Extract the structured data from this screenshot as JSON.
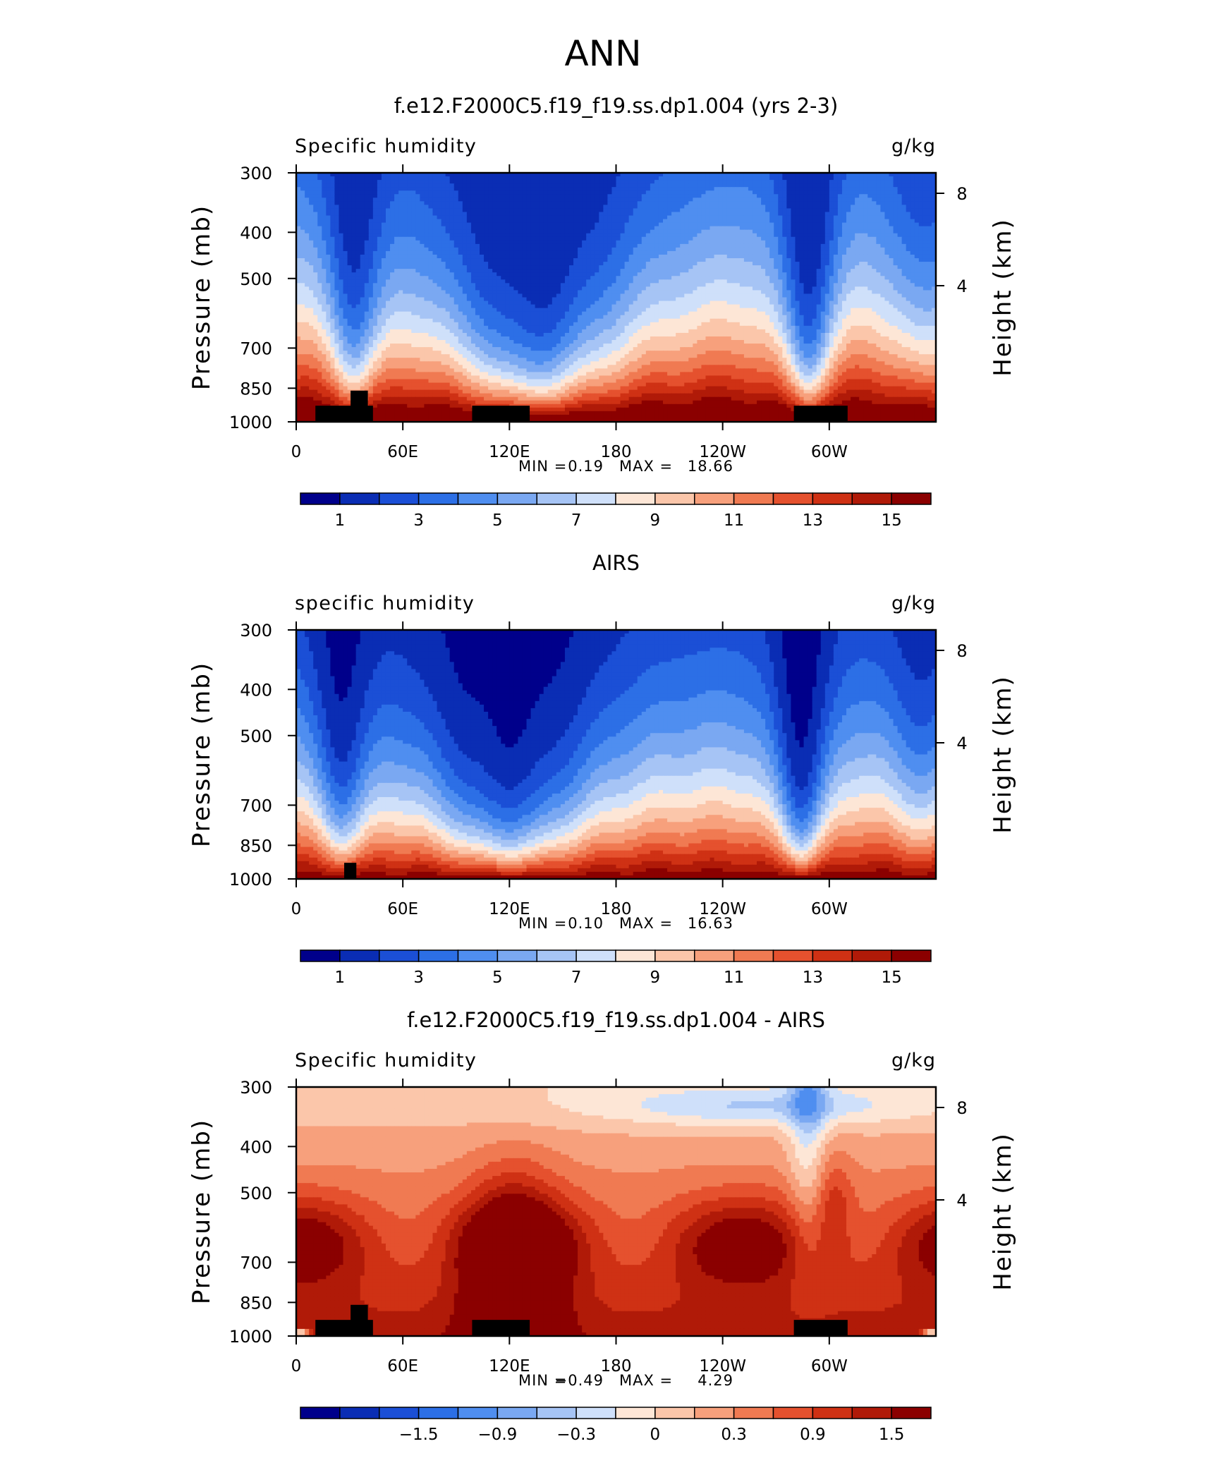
{
  "figure_title": "ANN",
  "chart_data": [
    {
      "type": "heatmap",
      "title": "f.e12.F2000C5.f19_f19.ss.dp1.004 (yrs 2-3)",
      "subtitle_left": "Specific humidity",
      "subtitle_right": "g/kg",
      "ylabel": "Pressure (mb)",
      "ylabel_right": "Height (km)",
      "y_ticks": [
        "300",
        "400",
        "500",
        "700",
        "850",
        "1000"
      ],
      "y_right_ticks": [
        "8",
        "4"
      ],
      "x_ticks": [
        "0",
        "60E",
        "120E",
        "180",
        "120W",
        "60W"
      ],
      "min_label": "MIN =",
      "min_value": "0.19",
      "max_label": "MAX =",
      "max_value": "18.66",
      "colorbar_labels": [
        "1",
        "3",
        "5",
        "7",
        "9",
        "11",
        "13",
        "15"
      ],
      "field": "mean"
    },
    {
      "type": "heatmap",
      "title": "AIRS",
      "subtitle_left": "specific humidity",
      "subtitle_right": "g/kg",
      "ylabel": "Pressure (mb)",
      "ylabel_right": "Height (km)",
      "y_ticks": [
        "300",
        "400",
        "500",
        "700",
        "850",
        "1000"
      ],
      "y_right_ticks": [
        "8",
        "4"
      ],
      "x_ticks": [
        "0",
        "60E",
        "120E",
        "180",
        "120W",
        "60W"
      ],
      "min_label": "MIN =",
      "min_value": "0.10",
      "max_label": "MAX =",
      "max_value": "16.63",
      "colorbar_labels": [
        "1",
        "3",
        "5",
        "7",
        "9",
        "11",
        "13",
        "15"
      ],
      "field": "obs"
    },
    {
      "type": "heatmap",
      "title": "f.e12.F2000C5.f19_f19.ss.dp1.004 - AIRS",
      "subtitle_left": "Specific humidity",
      "subtitle_right": "g/kg",
      "ylabel": "Pressure (mb)",
      "ylabel_right": "Height (km)",
      "y_ticks": [
        "300",
        "400",
        "500",
        "700",
        "850",
        "1000"
      ],
      "y_right_ticks": [
        "8",
        "4"
      ],
      "x_ticks": [
        "0",
        "60E",
        "120E",
        "180",
        "120W",
        "60W"
      ],
      "min_label": "MIN =",
      "min_value": "−0.49",
      "max_label": "MAX =",
      "max_value": "4.29",
      "colorbar_labels": [
        "−1.5",
        "−0.9",
        "−0.3",
        "0",
        "0.3",
        "0.9",
        "1.5"
      ],
      "field": "diff"
    }
  ],
  "colormap": [
    "#00008b",
    "#0a2db4",
    "#1b4fd6",
    "#2c6fe6",
    "#4f8ef0",
    "#7aa8f2",
    "#a6c4f5",
    "#cfe0fa",
    "#fde6d6",
    "#fbc6aa",
    "#f7a07c",
    "#f07a52",
    "#e5512e",
    "#cf3114",
    "#b01a08",
    "#8b0000"
  ],
  "colors": {
    "topography": "#000000",
    "frame": "#000000"
  }
}
